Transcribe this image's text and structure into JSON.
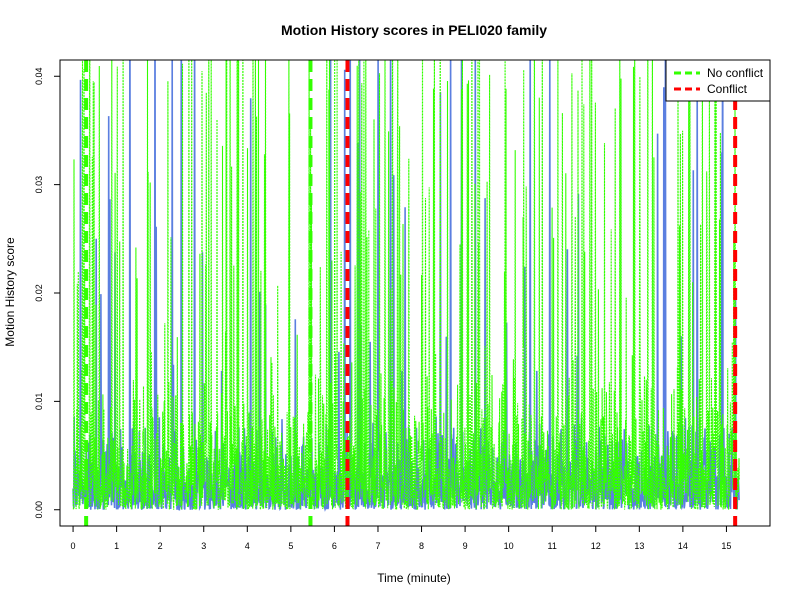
{
  "chart_data": {
    "type": "line",
    "title": "Motion History scores in PELI020 family",
    "xlabel": "Time (minute)",
    "ylabel": "Motion History score",
    "xlim": [
      -0.3,
      16.0
    ],
    "ylim": [
      -0.0015,
      0.0415
    ],
    "x_ticks": [
      0,
      1,
      2,
      3,
      4,
      5,
      6,
      7,
      8,
      9,
      10,
      11,
      12,
      13,
      14,
      15
    ],
    "y_ticks": [
      0.0,
      0.01,
      0.02,
      0.03,
      0.04
    ],
    "y_tick_labels": [
      "0.00",
      "0.01",
      "0.02",
      "0.03",
      "0.04"
    ],
    "grid": false,
    "legend_position": "top-right",
    "series": [
      {
        "name": "",
        "color": "#5b7fe0",
        "style": "solid"
      },
      {
        "name": "",
        "color": "#33ff00",
        "style": "dotted"
      }
    ],
    "note_series": "Two dense time series sampled over 0 to ~15.3 min; values mostly 0.000–0.012 with frequent spikes reaching the top of the plot.",
    "markers": [
      {
        "label": "No conflict",
        "color": "#33ff00",
        "style": "dashed",
        "x": [
          0.3,
          5.45
        ]
      },
      {
        "label": "Conflict",
        "color": "#ff0000",
        "style": "dashed",
        "x": [
          6.3,
          15.2
        ]
      }
    ],
    "legend": [
      {
        "label": "No conflict",
        "color": "#33ff00"
      },
      {
        "label": "Conflict",
        "color": "#ff0000"
      }
    ]
  }
}
